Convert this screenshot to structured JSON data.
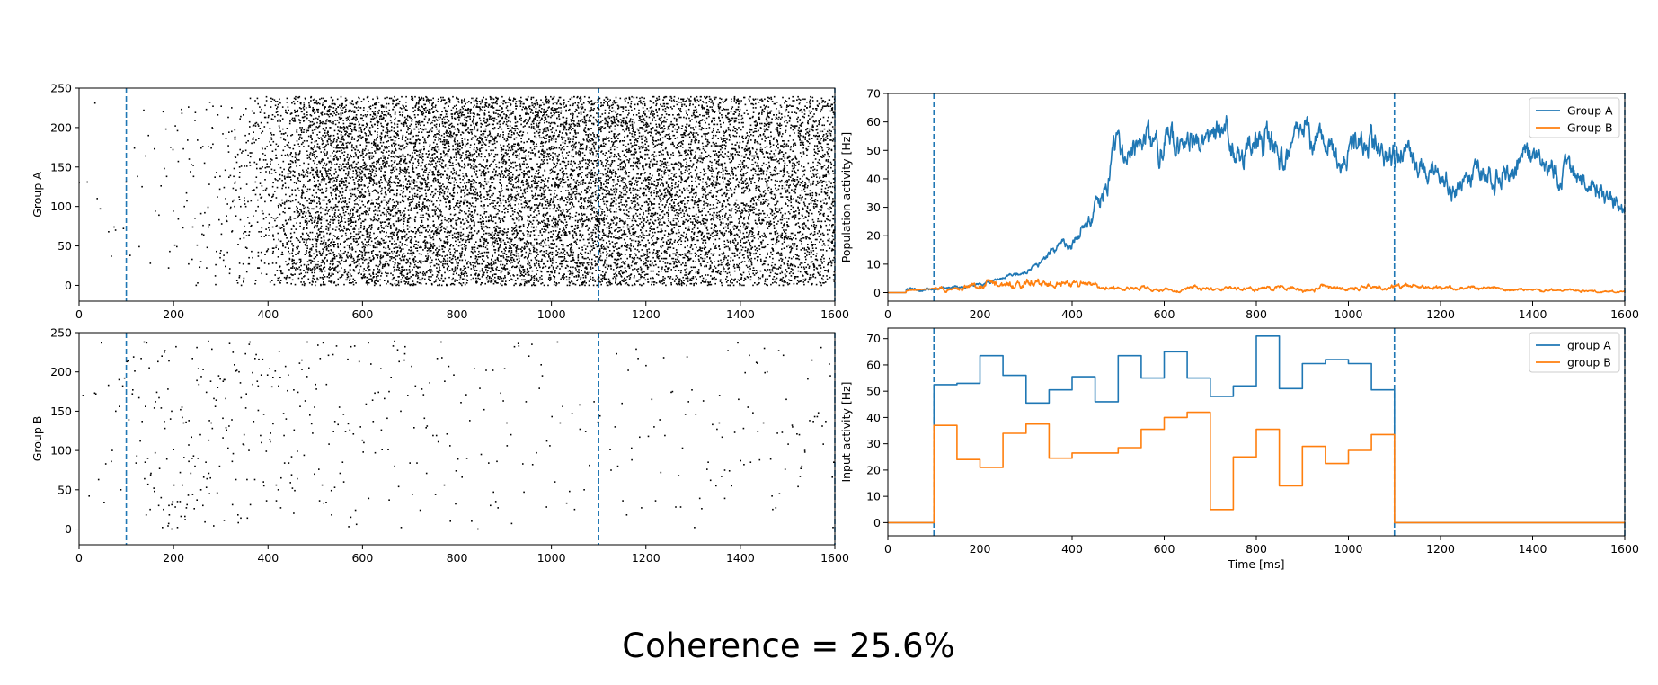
{
  "figure": {
    "suptitle": "Coherence = 25.6%"
  },
  "colors": {
    "blue": "#1f77b4",
    "orange": "#ff7f0e",
    "dot": "#000000"
  },
  "chart_data": [
    {
      "id": "rasterA",
      "type": "scatter",
      "ylabel": "Group A",
      "xlim": [
        0,
        1600
      ],
      "ylim": [
        -20,
        250
      ],
      "xticks": [
        0,
        200,
        400,
        600,
        800,
        1000,
        1200,
        1400,
        1600
      ],
      "xtick_labels": [
        "0",
        "200",
        "400",
        "600",
        "800",
        "1000",
        "1200",
        "1400",
        "1600"
      ],
      "yticks": [
        0,
        50,
        100,
        150,
        200,
        250
      ],
      "vlines": [
        100,
        1100,
        1600
      ],
      "neurons": [
        0,
        240
      ],
      "rate_profile_hz": [
        [
          0,
          0.3
        ],
        [
          100,
          0.5
        ],
        [
          200,
          1.5
        ],
        [
          300,
          4
        ],
        [
          400,
          15
        ],
        [
          480,
          40
        ],
        [
          500,
          50
        ],
        [
          1100,
          50
        ],
        [
          1600,
          38
        ]
      ]
    },
    {
      "id": "rasterB",
      "type": "scatter",
      "ylabel": "Group B",
      "xlim": [
        0,
        1600
      ],
      "ylim": [
        -20,
        250
      ],
      "xticks": [
        0,
        200,
        400,
        600,
        800,
        1000,
        1200,
        1400,
        1600
      ],
      "xtick_labels": [
        "0",
        "200",
        "400",
        "600",
        "800",
        "1000",
        "1200",
        "1400",
        "1600"
      ],
      "yticks": [
        0,
        50,
        100,
        150,
        200,
        250
      ],
      "vlines": [
        100,
        1100,
        1600
      ],
      "neurons": [
        0,
        240
      ],
      "rate_profile_hz": [
        [
          0,
          0.4
        ],
        [
          100,
          1.2
        ],
        [
          200,
          3
        ],
        [
          450,
          2
        ],
        [
          600,
          1.4
        ],
        [
          1100,
          0.6
        ],
        [
          1600,
          1.2
        ]
      ]
    },
    {
      "id": "popActivity",
      "type": "line",
      "ylabel": "Population activity [Hz]",
      "xlim": [
        0,
        1600
      ],
      "ylim": [
        -3,
        70
      ],
      "xticks": [
        0,
        200,
        400,
        600,
        800,
        1000,
        1200,
        1400,
        1600
      ],
      "xtick_labels": [
        "0",
        "200",
        "400",
        "600",
        "800",
        "1000",
        "1200",
        "1400",
        "1600"
      ],
      "yticks": [
        0,
        10,
        20,
        30,
        40,
        50,
        60,
        70
      ],
      "vlines": [
        100,
        1100,
        1600
      ],
      "legend": "upper right",
      "series": [
        {
          "name": "Group A",
          "color": "#1f77b4",
          "x": [
            0,
            100,
            200,
            300,
            400,
            450,
            500,
            700,
            900,
            1100,
            1200,
            1300,
            1400,
            1500,
            1600
          ],
          "y": [
            0,
            1,
            3,
            7,
            18,
            30,
            50,
            50,
            49,
            48,
            38,
            40,
            45,
            38,
            30
          ]
        },
        {
          "name": "Group B",
          "color": "#ff7f0e",
          "x": [
            0,
            100,
            200,
            300,
            400,
            500,
            800,
            1100,
            1600
          ],
          "y": [
            0,
            1.5,
            2.5,
            3,
            3,
            1.5,
            1.5,
            2,
            0.5
          ]
        }
      ]
    },
    {
      "id": "inputActivity",
      "type": "line",
      "step": "post",
      "ylabel": "Input activity [Hz]",
      "xlabel": "Time [ms]",
      "xlim": [
        0,
        1600
      ],
      "ylim": [
        -5,
        74
      ],
      "xticks": [
        0,
        200,
        400,
        600,
        800,
        1000,
        1200,
        1400,
        1600
      ],
      "xtick_labels": [
        "0",
        "200",
        "400",
        "600",
        "800",
        "1000",
        "1200",
        "1400",
        "1600"
      ],
      "yticks": [
        0,
        10,
        20,
        30,
        40,
        50,
        60,
        70
      ],
      "vlines": [
        100,
        1100,
        1600
      ],
      "legend": "upper right",
      "series": [
        {
          "name": "group A",
          "color": "#1f77b4",
          "x": [
            0,
            100,
            150,
            200,
            250,
            300,
            350,
            400,
            450,
            500,
            550,
            600,
            650,
            700,
            750,
            800,
            850,
            900,
            950,
            1000,
            1050,
            1100,
            1600
          ],
          "y": [
            0,
            52.5,
            53,
            63.5,
            56,
            45.5,
            50.5,
            55.5,
            46,
            63.5,
            55,
            65,
            55,
            48,
            52,
            71,
            51,
            60.5,
            62,
            60.5,
            50.5,
            0,
            0
          ]
        },
        {
          "name": "group B",
          "color": "#ff7f0e",
          "x": [
            0,
            100,
            150,
            200,
            250,
            300,
            350,
            400,
            450,
            500,
            550,
            600,
            650,
            700,
            750,
            800,
            850,
            900,
            950,
            1000,
            1050,
            1100,
            1600
          ],
          "y": [
            0,
            37,
            24,
            21,
            34,
            37.5,
            24.5,
            26.5,
            26.5,
            28.5,
            35.5,
            40,
            42,
            5,
            25,
            35.5,
            14,
            29,
            22.5,
            27.5,
            33.5,
            0,
            0
          ]
        }
      ]
    }
  ]
}
